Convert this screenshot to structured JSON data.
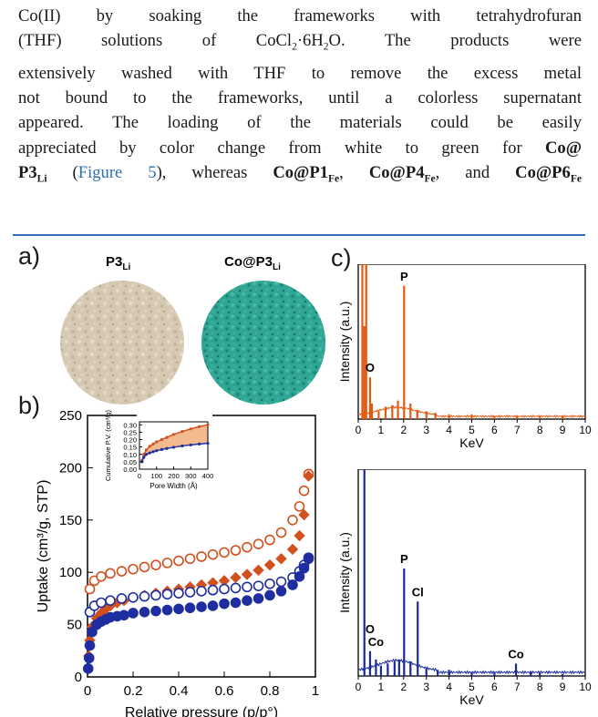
{
  "paragraph": {
    "line1_a": "Co(II) by soaking the frameworks with tetrahydrofuran",
    "line2_a": "(THF) solutions of CoCl",
    "line2_b": "·6H",
    "line2_c": "O. The products were",
    "line3": "extensively washed with THF to remove the excess metal",
    "line4": "not bound to the frameworks, until a colorless supernatant",
    "line5": "appeared. The loading of the materials could be easily",
    "line6_a": "appreciated by color change from white to green for",
    "line6_b": "Co@",
    "line7_a": "P3",
    "line7_a_sub": "Li",
    "line7_link": "Figure 5",
    "line7_b": "), whereas",
    "line7_c": "Co@P1",
    "line7_c_sub": "Fe",
    "line7_d": "Co@P4",
    "line7_d_sub": "Fe",
    "line7_e": "and",
    "line7_f": "Co@P6",
    "line7_f_sub": "Fe",
    "sub2": "2"
  },
  "figure": {
    "panel_a": {
      "letter": "a)",
      "sample1": "P3",
      "sample1_sub": "Li",
      "sample2": "Co@P3",
      "sample2_sub": "Li"
    },
    "panel_b": {
      "letter": "b)"
    },
    "panel_c": {
      "letter": "c)"
    }
  },
  "chart_data": [
    {
      "type": "scatter",
      "xlabel": "Relative pressure (p/p°)",
      "ylabel": "Uptake (cm³/g, STP)",
      "xlim": [
        0,
        1.0
      ],
      "ylim": [
        0,
        250
      ],
      "xticks": [
        "0",
        "0.2",
        "0.4",
        "0.6",
        "0.8",
        "1"
      ],
      "yticks": [
        "0",
        "50",
        "100",
        "150",
        "200",
        "250"
      ],
      "series": [
        {
          "color": "#d2501e",
          "fill": "open",
          "marker": "circle",
          "x": [
            0.01,
            0.03,
            0.06,
            0.1,
            0.15,
            0.2,
            0.25,
            0.3,
            0.35,
            0.4,
            0.45,
            0.5,
            0.55,
            0.6,
            0.65,
            0.7,
            0.75,
            0.8,
            0.85,
            0.9,
            0.93,
            0.95,
            0.97
          ],
          "values": [
            84,
            92,
            96,
            99,
            101,
            103,
            105,
            107,
            109,
            111,
            113,
            115,
            117,
            119,
            121,
            124,
            127,
            131,
            138,
            150,
            163,
            178,
            194
          ]
        },
        {
          "color": "#d2501e",
          "fill": "solid",
          "marker": "diamond",
          "x": [
            0.005,
            0.01,
            0.02,
            0.04,
            0.06,
            0.08,
            0.1,
            0.13,
            0.16,
            0.2,
            0.25,
            0.3,
            0.35,
            0.4,
            0.45,
            0.5,
            0.55,
            0.6,
            0.65,
            0.7,
            0.75,
            0.8,
            0.85,
            0.9,
            0.93,
            0.95,
            0.97
          ],
          "values": [
            20,
            35,
            48,
            56,
            61,
            65,
            68,
            71,
            73,
            76,
            78,
            80,
            82,
            84,
            86,
            88,
            90,
            92,
            95,
            98,
            102,
            107,
            113,
            122,
            135,
            155,
            192
          ]
        },
        {
          "color": "#1e2ea0",
          "fill": "open",
          "marker": "circle",
          "x": [
            0.01,
            0.03,
            0.06,
            0.1,
            0.15,
            0.2,
            0.25,
            0.3,
            0.35,
            0.4,
            0.45,
            0.5,
            0.55,
            0.6,
            0.65,
            0.7,
            0.75,
            0.8,
            0.85,
            0.9,
            0.93,
            0.95,
            0.97
          ],
          "values": [
            62,
            68,
            71,
            73,
            75,
            76,
            77,
            78,
            79,
            80,
            81,
            82,
            83,
            84,
            85,
            86,
            87,
            89,
            91,
            95,
            101,
            107,
            114
          ]
        },
        {
          "color": "#1e2ea0",
          "fill": "solid",
          "marker": "circle",
          "x": [
            0.003,
            0.007,
            0.01,
            0.02,
            0.04,
            0.06,
            0.08,
            0.1,
            0.13,
            0.16,
            0.2,
            0.25,
            0.3,
            0.35,
            0.4,
            0.45,
            0.5,
            0.55,
            0.6,
            0.65,
            0.7,
            0.75,
            0.8,
            0.85,
            0.9,
            0.93,
            0.95,
            0.97
          ],
          "values": [
            8,
            18,
            30,
            43,
            50,
            53,
            55,
            57,
            58,
            59,
            61,
            62,
            63,
            64,
            65,
            66,
            67,
            68,
            70,
            71,
            73,
            75,
            78,
            82,
            88,
            96,
            104,
            113
          ]
        }
      ],
      "inset": {
        "xlabel": "Pore Width (Å)",
        "ylabel": "Cumulative P.V. (cm³/g)",
        "xlim": [
          0,
          400
        ],
        "ylim": [
          0,
          0.32
        ],
        "xticks": [
          "0",
          "100",
          "200",
          "300",
          "400"
        ],
        "yticks": [
          "0.00",
          "0.05",
          "0.10",
          "0.15",
          "0.20",
          "0.25",
          "0.30"
        ],
        "series": [
          {
            "color": "#d2501e",
            "x": [
              15,
              25,
              40,
              60,
              80,
              100,
              130,
              160,
              200,
              250,
              300,
              350,
              400
            ],
            "values": [
              0.06,
              0.1,
              0.13,
              0.155,
              0.17,
              0.185,
              0.2,
              0.215,
              0.235,
              0.255,
              0.272,
              0.288,
              0.3
            ]
          },
          {
            "color": "#1e2ea0",
            "x": [
              15,
              25,
              40,
              60,
              80,
              100,
              130,
              160,
              200,
              250,
              300,
              350,
              400
            ],
            "values": [
              0.05,
              0.08,
              0.1,
              0.11,
              0.118,
              0.125,
              0.133,
              0.14,
              0.148,
              0.157,
              0.164,
              0.17,
              0.175
            ]
          }
        ]
      }
    },
    {
      "type": "bar",
      "xlabel": "KeV",
      "ylabel": "Intensity (a.u.)",
      "xlim": [
        0,
        10
      ],
      "xticks": [
        "0",
        "1",
        "2",
        "3",
        "4",
        "5",
        "6",
        "7",
        "8",
        "9",
        "10"
      ],
      "color": "#e05a12",
      "annotations": [
        {
          "text": "P",
          "x": 2.02,
          "value": 0.86
        },
        {
          "text": "O",
          "x": 0.52,
          "value": 0.27
        }
      ],
      "x": [
        0.18,
        0.27,
        0.35,
        0.52,
        0.6,
        0.9,
        1.2,
        1.5,
        1.75,
        2.02,
        2.3,
        2.6,
        3.0,
        3.4,
        4.0,
        5.0,
        6.0,
        7.0,
        8.0,
        9.0
      ],
      "values": [
        1.0,
        0.6,
        1.0,
        0.27,
        0.1,
        0.05,
        0.08,
        0.09,
        0.12,
        0.86,
        0.1,
        0.06,
        0.05,
        0.04,
        0.03,
        0.03,
        0.02,
        0.02,
        0.02,
        0.02
      ]
    },
    {
      "type": "bar",
      "xlabel": "KeV",
      "ylabel": "Intensity (a.u.)",
      "xlim": [
        0,
        10
      ],
      "xticks": [
        "0",
        "1",
        "2",
        "3",
        "4",
        "5",
        "6",
        "7",
        "8",
        "9",
        "10"
      ],
      "color": "#1a2a9a",
      "annotations": [
        {
          "text": "P",
          "x": 2.02,
          "value": 0.52
        },
        {
          "text": "Cl",
          "x": 2.62,
          "value": 0.36
        },
        {
          "text": "O",
          "x": 0.52,
          "value": 0.18
        },
        {
          "text": "Co",
          "x": 0.78,
          "value": 0.12
        },
        {
          "text": "Co",
          "x": 6.95,
          "value": 0.06
        }
      ],
      "x": [
        0.27,
        0.52,
        0.78,
        1.0,
        1.3,
        1.6,
        1.8,
        2.02,
        2.3,
        2.62,
        3.0,
        3.5,
        4.0,
        5.0,
        6.0,
        6.95,
        7.6,
        8.0,
        9.0
      ],
      "values": [
        1.0,
        0.12,
        0.08,
        0.05,
        0.06,
        0.07,
        0.08,
        0.52,
        0.07,
        0.36,
        0.04,
        0.03,
        0.03,
        0.02,
        0.02,
        0.06,
        0.02,
        0.015,
        0.01
      ]
    }
  ]
}
